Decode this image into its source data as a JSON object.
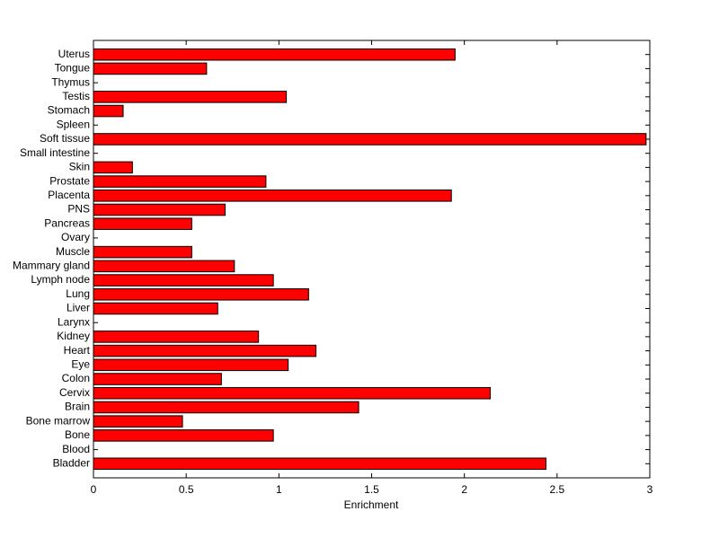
{
  "chart_data": {
    "type": "barh",
    "x_label": "Enrichment",
    "categories": [
      "Bladder",
      "Blood",
      "Bone",
      "Bone marrow",
      "Brain",
      "Cervix",
      "Colon",
      "Eye",
      "Heart",
      "Kidney",
      "Larynx",
      "Liver",
      "Lung",
      "Lymph node",
      "Mammary gland",
      "Muscle",
      "Ovary",
      "Pancreas",
      "PNS",
      "Placenta",
      "Prostate",
      "Skin",
      "Small intestine",
      "Soft tissue",
      "Spleen",
      "Stomach",
      "Testis",
      "Thymus",
      "Tongue",
      "Uterus"
    ],
    "values": [
      2.44,
      0,
      0.97,
      0.48,
      1.43,
      2.14,
      0.69,
      1.05,
      1.2,
      0.89,
      0,
      0.67,
      1.16,
      0.97,
      0.76,
      0.53,
      0,
      0.53,
      0.71,
      1.93,
      0.93,
      0.21,
      0,
      2.98,
      0,
      0.16,
      1.04,
      0,
      0.61,
      1.95
    ],
    "color": "#ff0000",
    "xlim": [
      0,
      3
    ],
    "xticks": [
      0,
      0.5,
      1,
      1.5,
      2,
      2.5,
      3
    ]
  }
}
